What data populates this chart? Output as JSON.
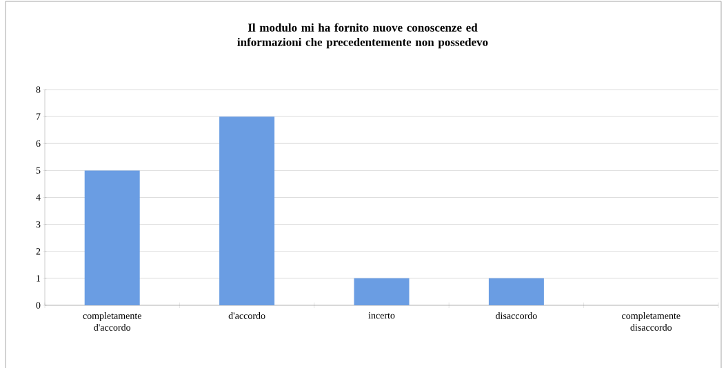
{
  "chart_data": {
    "type": "bar",
    "title": "Il modulo mi ha fornito nuove conoscenze ed informazioni che precedentemente non possedevo",
    "categories": [
      "completamente d'accordo",
      "d'accordo",
      "incerto",
      "disaccordo",
      "completamente disaccordo"
    ],
    "values": [
      5,
      7,
      1,
      1,
      0
    ],
    "color": "#6a9de3",
    "ylim": [
      0,
      8
    ],
    "yticks": [
      0,
      1,
      2,
      3,
      4,
      5,
      6,
      7,
      8
    ],
    "grid": "y"
  }
}
